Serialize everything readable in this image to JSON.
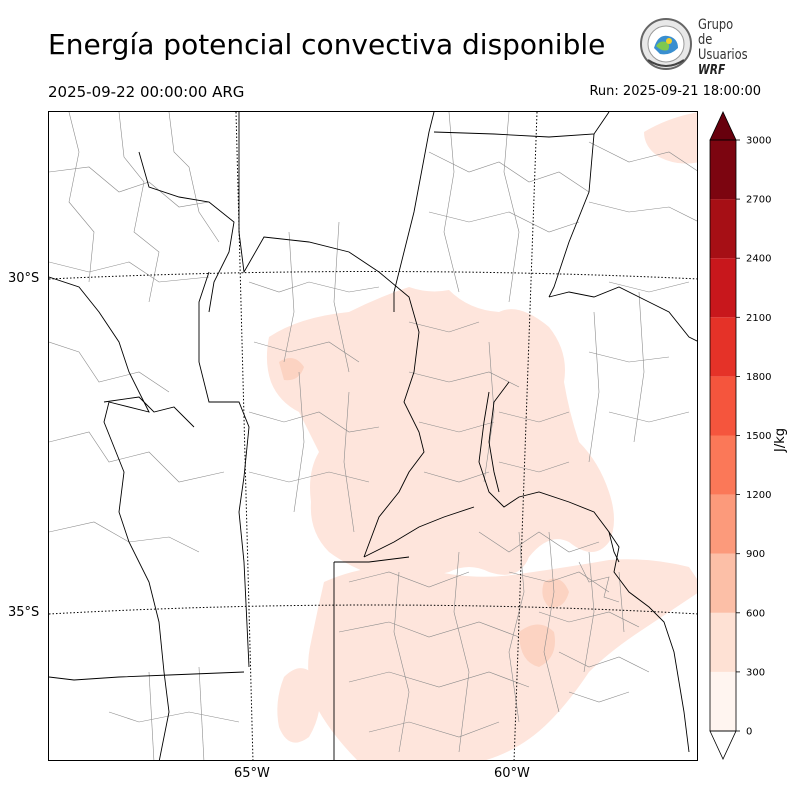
{
  "header": {
    "title": "Energía potencial convectiva disponible",
    "valid_time": "2025-09-22 00:00:00 ARG",
    "run_time": "Run: 2025-09-21 18:00:00"
  },
  "logo": {
    "line1": "Grupo de",
    "line2": "Usuarios",
    "line3": "WRF"
  },
  "map": {
    "lat_labels": [
      "30°S",
      "35°S"
    ],
    "lon_labels": [
      "65°W",
      "60°W"
    ],
    "field_name": "CAPE",
    "colors": {
      "border": "#000000",
      "department": "#8c8c8c",
      "graticule": "#000000",
      "shade_light": "#fee5dc",
      "shade_mid": "#fcd3c2"
    }
  },
  "colorbar": {
    "unit": "J/kg",
    "ticks": [
      "0",
      "300",
      "600",
      "900",
      "1200",
      "1500",
      "1800",
      "2100",
      "2400",
      "2700",
      "3000"
    ],
    "colors": [
      "#fff5f0",
      "#fee1d4",
      "#fcbfa7",
      "#fc9a7b",
      "#fb7858",
      "#f5553d",
      "#e53228",
      "#c8171c",
      "#a60f15",
      "#7c0510",
      "#67000d"
    ]
  }
}
